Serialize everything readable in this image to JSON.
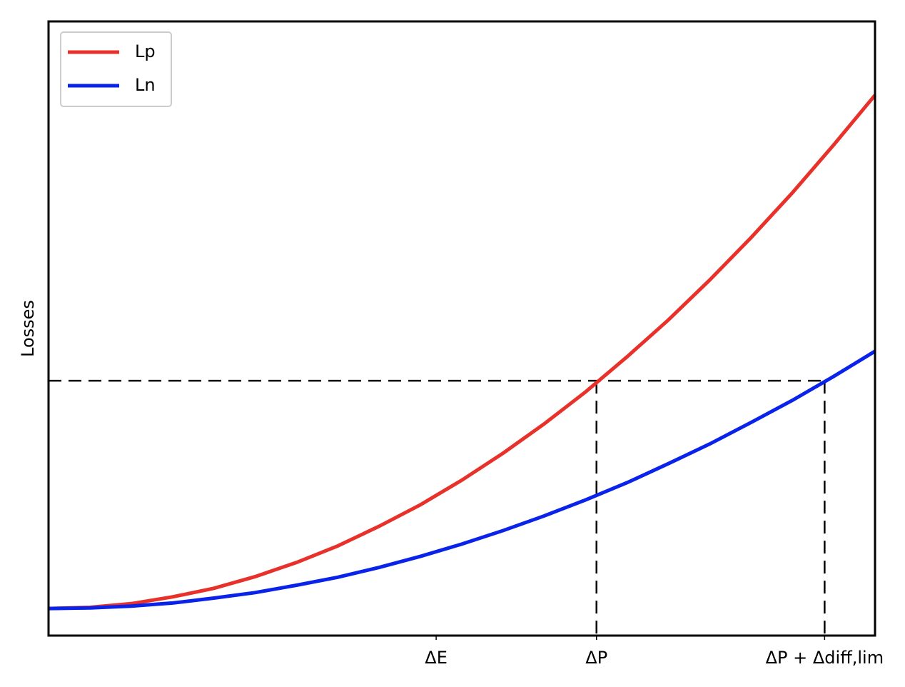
{
  "chart_data": {
    "type": "line",
    "ylabel": "Losses",
    "x": [
      0,
      0.5,
      1,
      1.5,
      2,
      2.5,
      3,
      3.5,
      4,
      4.5,
      5,
      5.5,
      6,
      6.5,
      7,
      7.5,
      8,
      8.5,
      9,
      9.5,
      10
    ],
    "series": [
      {
        "name": "Lp",
        "color": "#e8312a",
        "values": [
          0.44,
          0.46,
          0.52,
          0.63,
          0.77,
          0.96,
          1.19,
          1.46,
          1.78,
          2.13,
          2.53,
          2.97,
          3.45,
          3.97,
          4.54,
          5.14,
          5.79,
          6.48,
          7.21,
          7.99,
          8.8
        ]
      },
      {
        "name": "Ln",
        "color": "#0a23ea",
        "values": [
          0.44,
          0.45,
          0.48,
          0.53,
          0.61,
          0.7,
          0.82,
          0.95,
          1.11,
          1.29,
          1.49,
          1.71,
          1.95,
          2.21,
          2.49,
          2.8,
          3.12,
          3.47,
          3.83,
          4.22,
          4.63
        ]
      }
    ],
    "xlim": [
      0,
      10
    ],
    "ylim": [
      0,
      10
    ],
    "xticks": [
      {
        "value": 4.69,
        "label": "ΔE"
      },
      {
        "value": 6.63,
        "label": "ΔP"
      },
      {
        "value": 9.39,
        "label": "ΔP + Δdiff,lim"
      }
    ],
    "yticks": [],
    "guide_y": 4.15,
    "legend": "upper left"
  }
}
